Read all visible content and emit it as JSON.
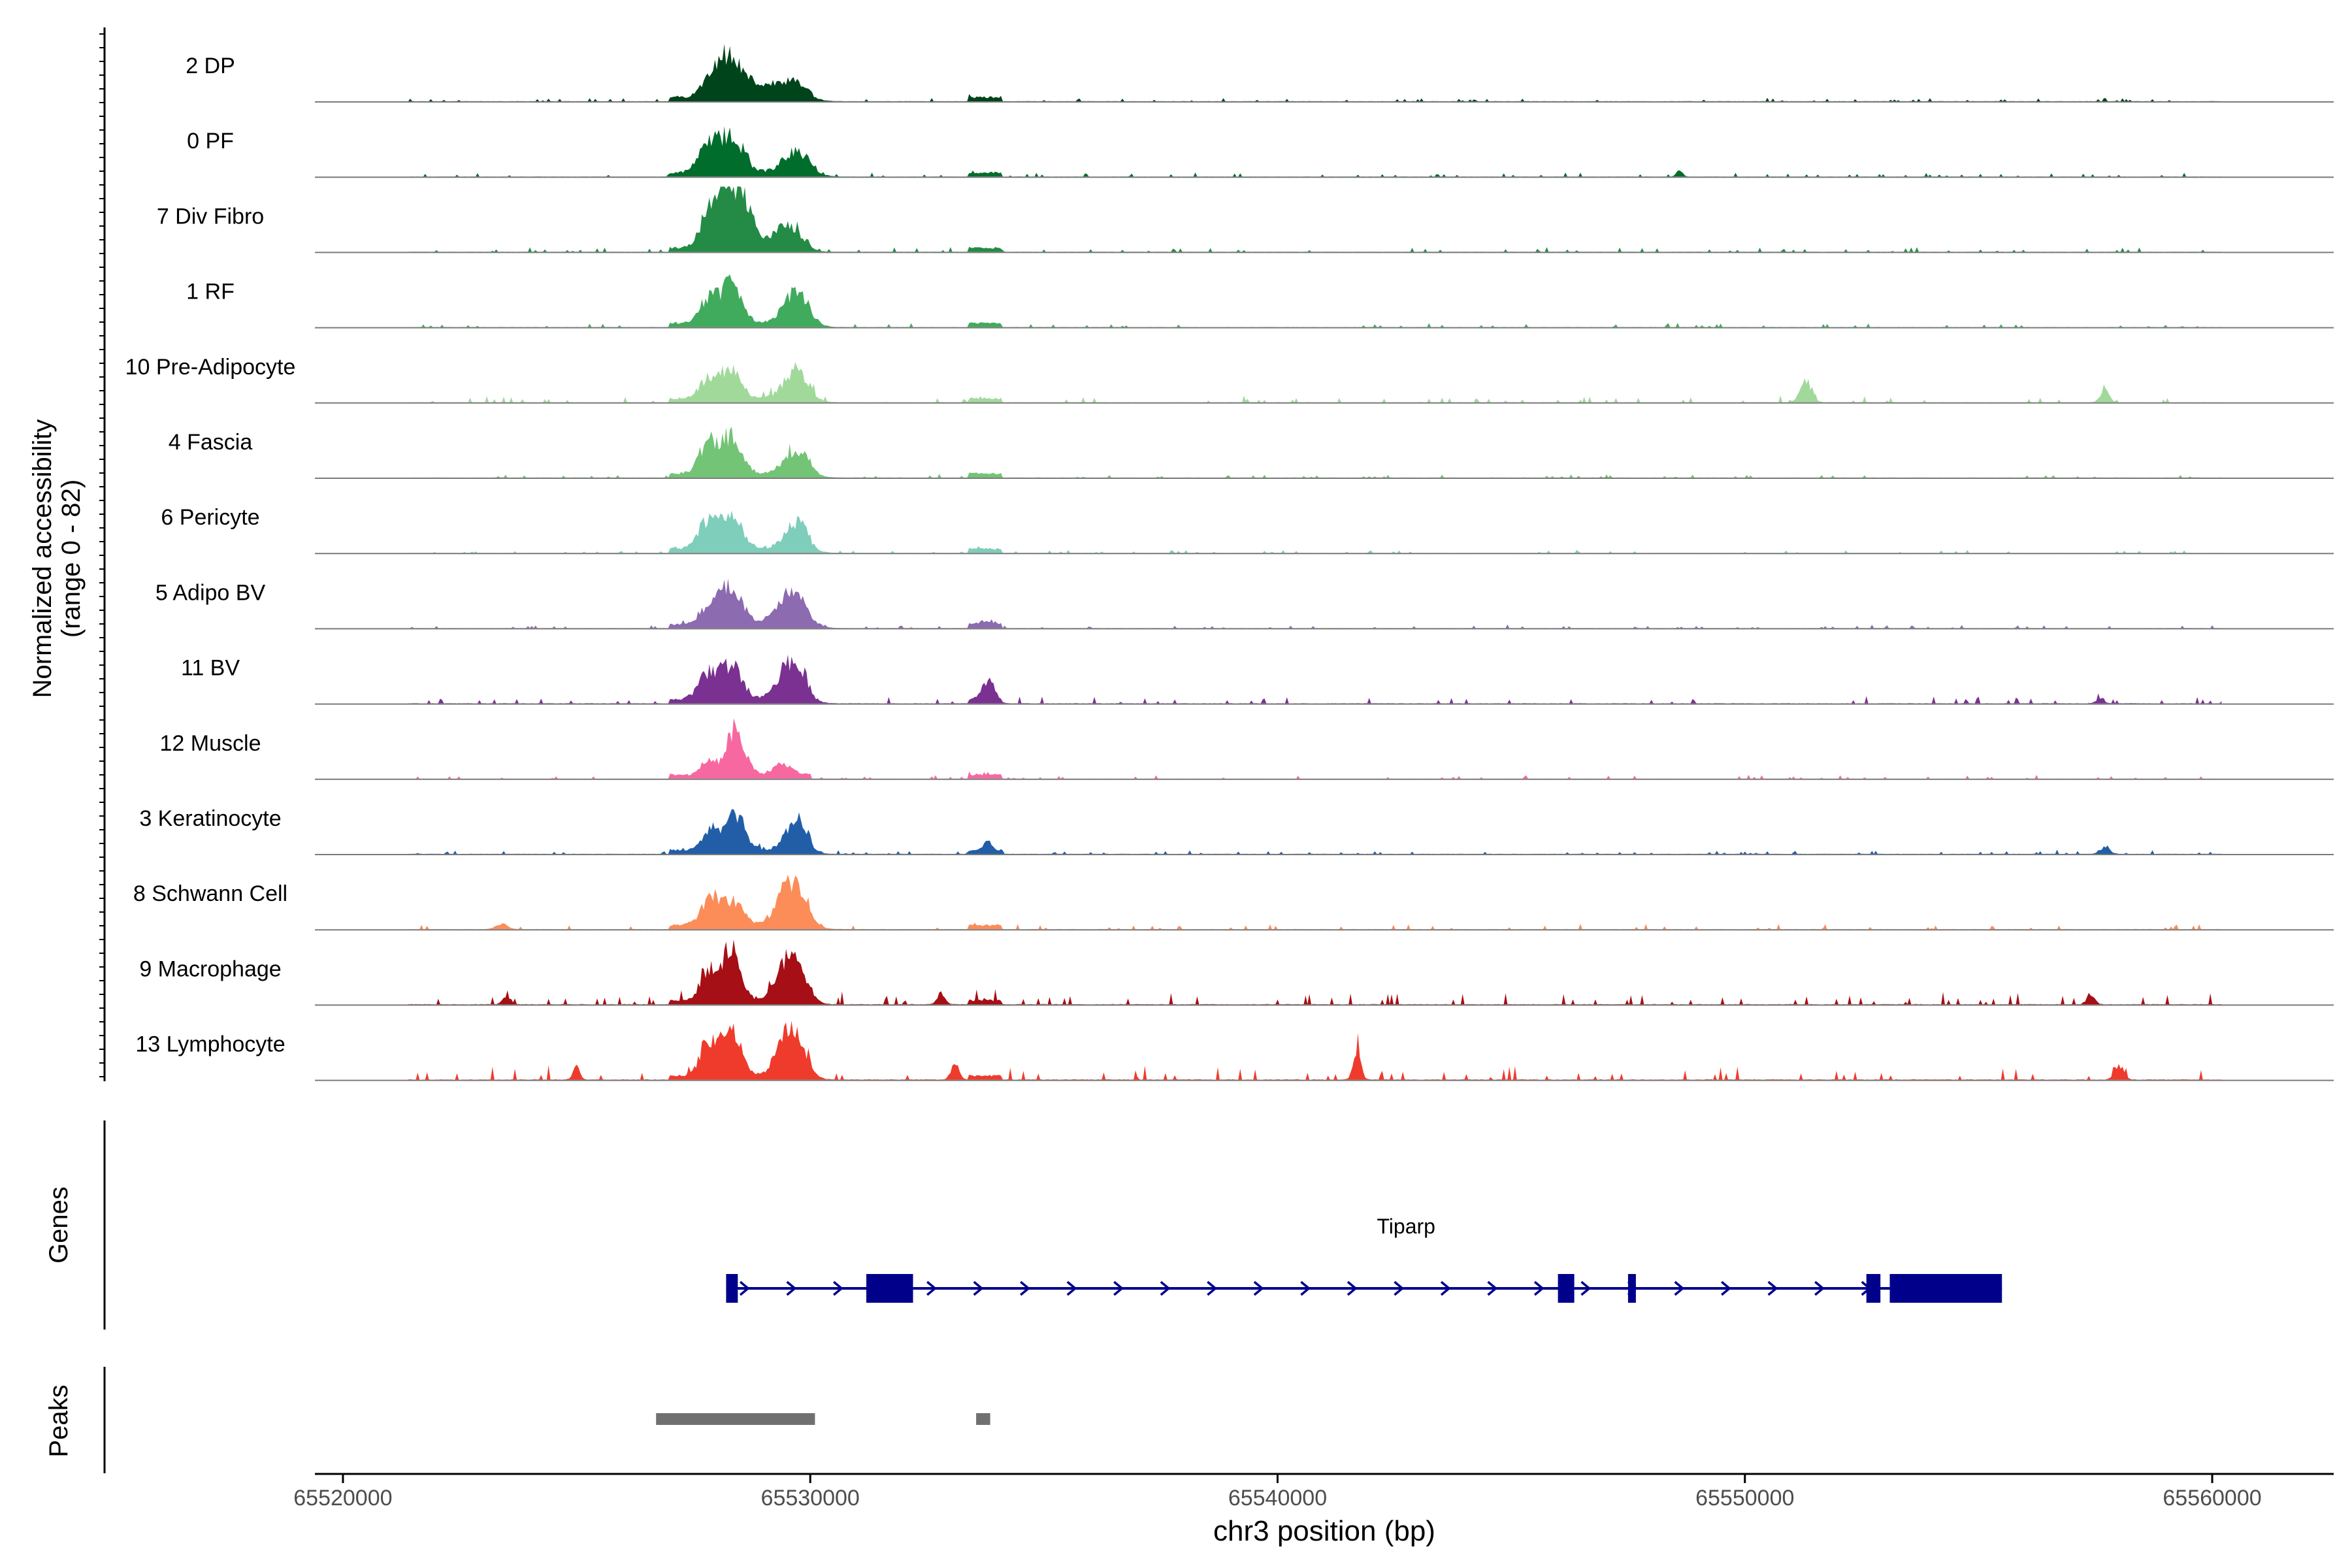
{
  "chart_data": {
    "type": "area",
    "title": "",
    "ylabel": "Normalized accessibility\n(range 0 - 82)",
    "ylabel_line1": "Normalized accessibility",
    "ylabel_line2": "(range 0 - 82)",
    "y_range": [
      0,
      82
    ],
    "xlabel": "chr3 position (bp)",
    "xlim": [
      65519400,
      65562600
    ],
    "x_ticks": [
      65520000,
      65530000,
      65540000,
      65550000,
      65560000
    ],
    "x_tick_labels": [
      "65520000",
      "65530000",
      "65540000",
      "65550000",
      "65560000"
    ],
    "grid": false,
    "signal_peaks": [
      {
        "start": 65527000,
        "end": 65530000,
        "summits": [
          65528300,
          65529700
        ]
      },
      {
        "start": 65533400,
        "end": 65534100,
        "summits": [
          65533800
        ]
      }
    ],
    "series": [
      {
        "name": "2 DP",
        "color": "#00441b",
        "peaks": [
          [
            65528300,
            29,
            260
          ],
          [
            65527900,
            16,
            200
          ],
          [
            65529600,
            12,
            300
          ],
          [
            65528900,
            8,
            250
          ]
        ],
        "bg": 0.6
      },
      {
        "name": "0 PF",
        "color": "#006d2c",
        "peaks": [
          [
            65528300,
            28,
            260
          ],
          [
            65527800,
            18,
            200
          ],
          [
            65529700,
            16,
            280
          ],
          [
            65548600,
            5,
            60
          ]
        ],
        "bg": 0.7
      },
      {
        "name": "7 Div Fibro",
        "color": "#238b45",
        "peaks": [
          [
            65528200,
            45,
            220
          ],
          [
            65528600,
            30,
            200
          ],
          [
            65527800,
            22,
            180
          ],
          [
            65529500,
            18,
            280
          ]
        ],
        "bg": 0.8
      },
      {
        "name": "1 RF",
        "color": "#41ab5d",
        "peaks": [
          [
            65528300,
            30,
            220
          ],
          [
            65527800,
            18,
            180
          ],
          [
            65529700,
            24,
            260
          ]
        ],
        "bg": 0.7
      },
      {
        "name": "10 Pre-Adipocyte",
        "color": "#a1d99b",
        "peaks": [
          [
            65528300,
            22,
            220
          ],
          [
            65527800,
            14,
            180
          ],
          [
            65529700,
            22,
            250
          ],
          [
            65551300,
            17,
            120
          ],
          [
            65557700,
            9,
            90
          ]
        ],
        "bg": 1.2
      },
      {
        "name": "4 Fascia",
        "color": "#74c476",
        "peaks": [
          [
            65528300,
            28,
            230
          ],
          [
            65527800,
            22,
            190
          ],
          [
            65529700,
            18,
            260
          ]
        ],
        "bg": 0.6
      },
      {
        "name": "6 Pericyte",
        "color": "#7fcdbb",
        "peaks": [
          [
            65528300,
            26,
            240
          ],
          [
            65527800,
            20,
            200
          ],
          [
            65529700,
            20,
            240
          ]
        ],
        "bg": 0.5
      },
      {
        "name": "5 Adipo BV",
        "color": "#8c6bb1",
        "peaks": [
          [
            65528300,
            26,
            240
          ],
          [
            65527900,
            16,
            200
          ],
          [
            65529600,
            24,
            300
          ],
          [
            65533800,
            3,
            120
          ]
        ],
        "bg": 0.6
      },
      {
        "name": "11 BV",
        "color": "#7a3191",
        "peaks": [
          [
            65528300,
            26,
            230
          ],
          [
            65527800,
            18,
            200
          ],
          [
            65529600,
            30,
            260
          ],
          [
            65533800,
            12,
            140
          ],
          [
            65557600,
            4,
            80
          ]
        ],
        "bg": 1.4
      },
      {
        "name": "12 Muscle",
        "color": "#f768a1",
        "peaks": [
          [
            65528400,
            36,
            200
          ],
          [
            65527800,
            10,
            150
          ],
          [
            65529400,
            8,
            200
          ]
        ],
        "bg": 0.6
      },
      {
        "name": "3 Keratinocyte",
        "color": "#225ea8",
        "peaks": [
          [
            65528400,
            28,
            200
          ],
          [
            65527900,
            16,
            180
          ],
          [
            65529700,
            24,
            220
          ],
          [
            65533800,
            6,
            100
          ],
          [
            65557700,
            5,
            100
          ]
        ],
        "bg": 0.7
      },
      {
        "name": "8 Schwann Cell",
        "color": "#fc8d59",
        "peaks": [
          [
            65527900,
            22,
            220
          ],
          [
            65528400,
            16,
            200
          ],
          [
            65529600,
            34,
            280
          ],
          [
            65523400,
            4,
            120
          ]
        ],
        "bg": 0.9
      },
      {
        "name": "9 Macrophage",
        "color": "#a50f15",
        "peaks": [
          [
            65528300,
            40,
            200
          ],
          [
            65527800,
            22,
            160
          ],
          [
            65529600,
            38,
            260
          ],
          [
            65523500,
            7,
            80
          ],
          [
            65532800,
            9,
            80
          ],
          [
            65557400,
            8,
            80
          ]
        ],
        "bg": 2.2
      },
      {
        "name": "13 Lymphocyte",
        "color": "#ef3b2c",
        "peaks": [
          [
            65528300,
            36,
            200
          ],
          [
            65527800,
            26,
            160
          ],
          [
            65529600,
            36,
            260
          ],
          [
            65541700,
            22,
            80
          ],
          [
            65525000,
            10,
            70
          ],
          [
            65533100,
            13,
            80
          ],
          [
            65558000,
            12,
            90
          ]
        ],
        "bg": 2.4
      }
    ]
  },
  "genes": {
    "track_label": "Genes",
    "name": "Tiparp",
    "start": 65528200,
    "end": 65555500,
    "strand": "+",
    "color": "#00008b",
    "exons": [
      [
        65528200,
        65528450,
        "small"
      ],
      [
        65531200,
        65532200,
        "large"
      ],
      [
        65546000,
        65546350,
        "small"
      ],
      [
        65547500,
        65547650,
        "small"
      ],
      [
        65552600,
        65552900,
        "small"
      ],
      [
        65553100,
        65555500,
        "large"
      ]
    ]
  },
  "peaks_track": {
    "track_label": "Peaks",
    "color": "#707070",
    "regions": [
      [
        65526700,
        65530100
      ],
      [
        65533550,
        65533850
      ]
    ]
  }
}
